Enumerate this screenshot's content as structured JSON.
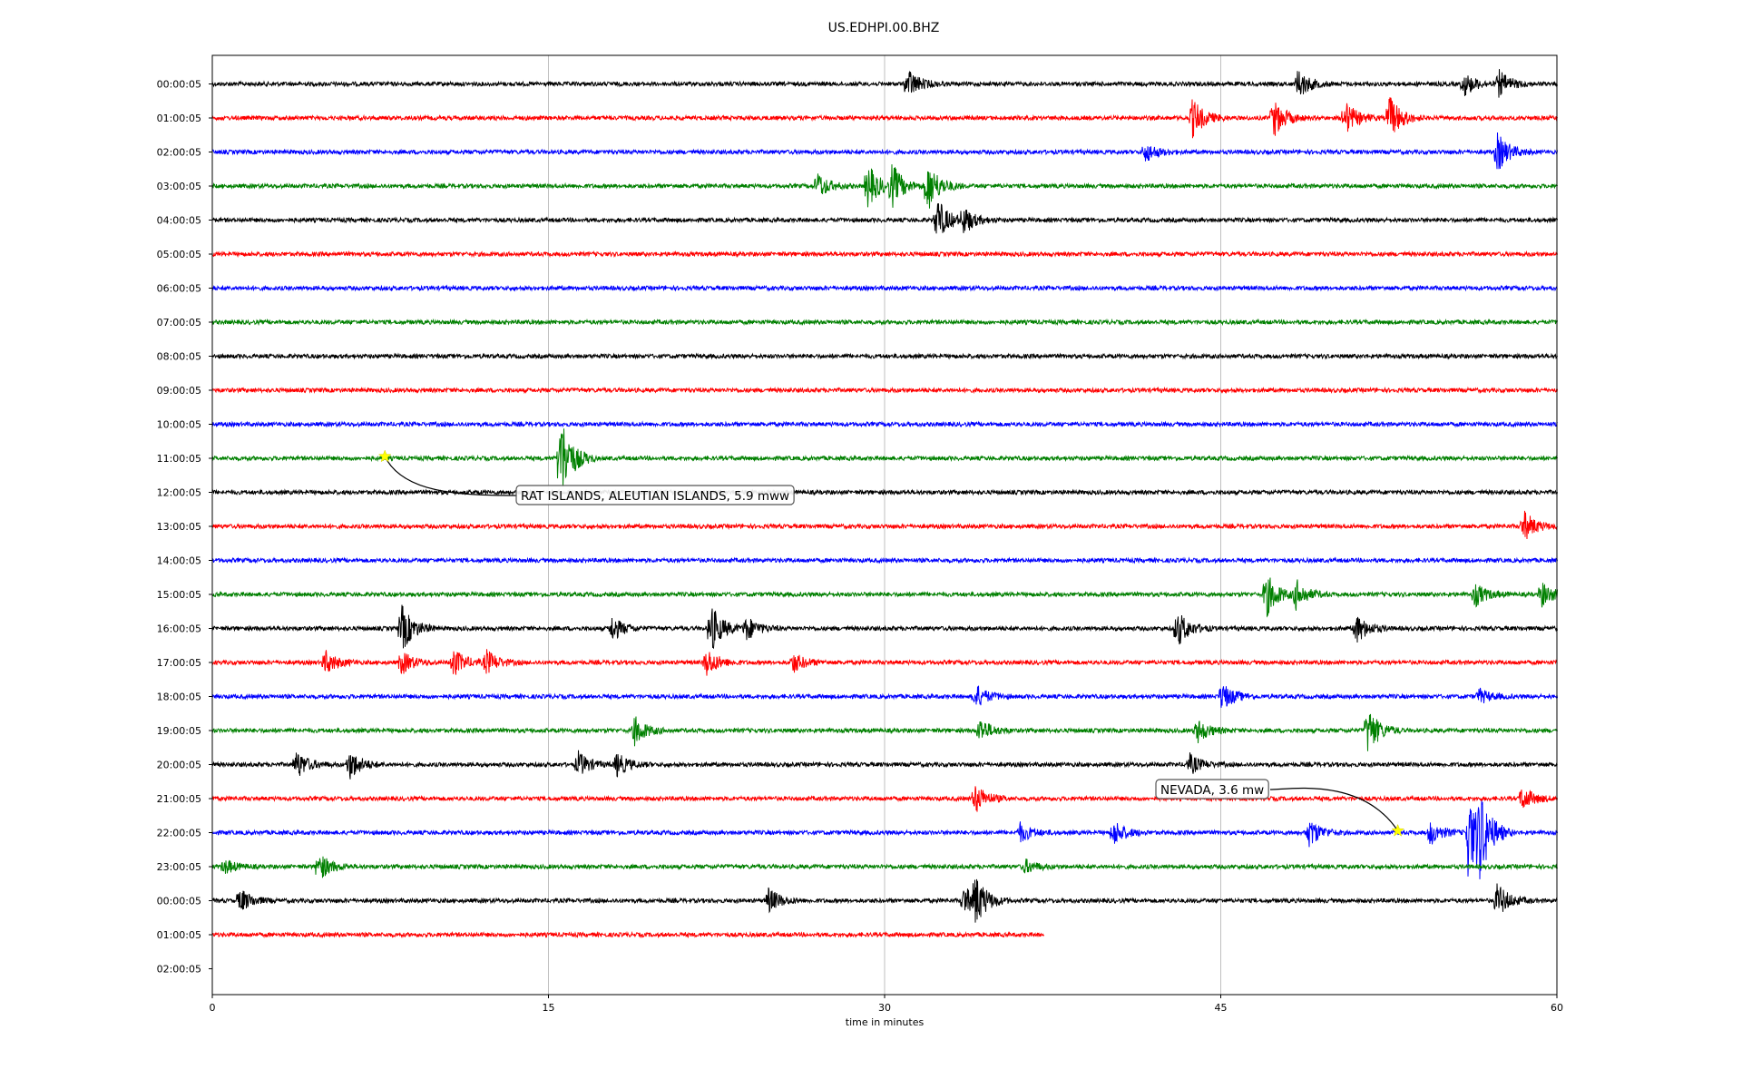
{
  "chart_data": {
    "type": "line",
    "title": "US.EDHPI.00.BHZ",
    "xlabel": "time in minutes",
    "ylabel": "",
    "xlim": [
      0,
      60
    ],
    "x_ticks": [
      "0",
      "15",
      "30",
      "45",
      "60"
    ],
    "grid": "vertical lines at 15, 30, 45",
    "colors": [
      "#000000",
      "#ff0000",
      "#0000ff",
      "#008000"
    ],
    "rows": [
      {
        "label": "00:00:05",
        "color": "#000000",
        "end": 60,
        "events": [
          [
            31,
            0.6
          ],
          [
            48.4,
            0.6
          ],
          [
            55.8,
            0.5
          ],
          [
            57.4,
            0.5
          ]
        ]
      },
      {
        "label": "01:00:05",
        "color": "#ff0000",
        "end": 60,
        "events": [
          [
            43.7,
            0.8
          ],
          [
            47.3,
            0.8
          ],
          [
            50.5,
            0.7
          ],
          [
            52.5,
            0.9
          ]
        ]
      },
      {
        "label": "02:00:05",
        "color": "#0000ff",
        "end": 60,
        "events": [
          [
            41.6,
            0.4
          ],
          [
            57.3,
            0.8
          ]
        ]
      },
      {
        "label": "03:00:05",
        "color": "#008000",
        "end": 60,
        "events": [
          [
            27,
            0.5
          ],
          [
            29.2,
            0.9
          ],
          [
            30.3,
            0.8
          ],
          [
            31.9,
            1.0
          ]
        ]
      },
      {
        "label": "04:00:05",
        "color": "#000000",
        "end": 60,
        "events": [
          [
            32.3,
            0.9
          ],
          [
            33.5,
            0.5
          ]
        ]
      },
      {
        "label": "05:00:05",
        "color": "#ff0000",
        "end": 60,
        "events": []
      },
      {
        "label": "06:00:05",
        "color": "#0000ff",
        "end": 60,
        "events": []
      },
      {
        "label": "07:00:05",
        "color": "#008000",
        "end": 60,
        "events": []
      },
      {
        "label": "08:00:05",
        "color": "#000000",
        "end": 60,
        "events": []
      },
      {
        "label": "09:00:05",
        "color": "#ff0000",
        "end": 60,
        "events": []
      },
      {
        "label": "10:00:05",
        "color": "#0000ff",
        "end": 60,
        "events": []
      },
      {
        "label": "11:00:05",
        "color": "#008000",
        "end": 60,
        "events": [
          [
            15.5,
            1.8
          ]
        ]
      },
      {
        "label": "12:00:05",
        "color": "#000000",
        "end": 60,
        "events": []
      },
      {
        "label": "13:00:05",
        "color": "#ff0000",
        "end": 60,
        "events": [
          [
            58.5,
            0.6
          ]
        ]
      },
      {
        "label": "14:00:05",
        "color": "#0000ff",
        "end": 60,
        "events": []
      },
      {
        "label": "15:00:05",
        "color": "#008000",
        "end": 60,
        "events": [
          [
            47,
            0.9
          ],
          [
            48.3,
            0.6
          ],
          [
            56.3,
            0.5
          ],
          [
            59.3,
            0.5
          ]
        ]
      },
      {
        "label": "16:00:05",
        "color": "#000000",
        "end": 60,
        "events": [
          [
            8.4,
            1.0
          ],
          [
            17.8,
            0.5
          ],
          [
            22.2,
            1.0
          ],
          [
            23.8,
            0.5
          ],
          [
            43,
            0.8
          ],
          [
            51,
            0.6
          ]
        ]
      },
      {
        "label": "17:00:05",
        "color": "#ff0000",
        "end": 60,
        "events": [
          [
            5,
            0.5
          ],
          [
            8.4,
            0.5
          ],
          [
            10.7,
            0.6
          ],
          [
            12.2,
            0.5
          ],
          [
            22,
            0.6
          ],
          [
            25.9,
            0.4
          ]
        ]
      },
      {
        "label": "18:00:05",
        "color": "#0000ff",
        "end": 60,
        "events": [
          [
            34,
            0.5
          ],
          [
            45,
            0.6
          ],
          [
            56.5,
            0.3
          ]
        ]
      },
      {
        "label": "19:00:05",
        "color": "#008000",
        "end": 60,
        "events": [
          [
            18.8,
            0.6
          ],
          [
            34.2,
            0.5
          ],
          [
            43.9,
            0.5
          ],
          [
            51.5,
            1.0
          ]
        ]
      },
      {
        "label": "20:00:05",
        "color": "#000000",
        "end": 60,
        "events": [
          [
            3.7,
            0.6
          ],
          [
            6.1,
            0.6
          ],
          [
            16.3,
            0.5
          ],
          [
            18,
            0.5
          ],
          [
            43.6,
            0.4
          ]
        ]
      },
      {
        "label": "21:00:05",
        "color": "#ff0000",
        "end": 60,
        "events": [
          [
            34,
            0.6
          ],
          [
            58.4,
            0.5
          ]
        ]
      },
      {
        "label": "22:00:05",
        "color": "#0000ff",
        "end": 60,
        "events": [
          [
            36,
            0.4
          ],
          [
            40.2,
            0.5
          ],
          [
            48.9,
            0.6
          ],
          [
            54.3,
            0.5
          ],
          [
            56,
            1.8
          ],
          [
            56.5,
            1.4
          ]
        ]
      },
      {
        "label": "23:00:05",
        "color": "#008000",
        "end": 60,
        "events": [
          [
            0.5,
            0.3
          ],
          [
            4.7,
            0.6
          ],
          [
            36.2,
            0.3
          ]
        ]
      },
      {
        "label": "00:00:05",
        "color": "#000000",
        "end": 60,
        "events": [
          [
            1.2,
            0.5
          ],
          [
            24.8,
            0.5
          ],
          [
            33.5,
            0.6
          ],
          [
            34,
            0.9
          ],
          [
            57.3,
            0.7
          ]
        ]
      },
      {
        "label": "01:00:05",
        "color": "#ff0000",
        "end": 37.1,
        "events": []
      },
      {
        "label": "02:00:05",
        "color": "#000000",
        "end": 0,
        "events": []
      }
    ],
    "annotations": [
      {
        "text": "RAT ISLANDS, ALEUTIAN ISLANDS, 5.9 mww",
        "row": 11,
        "x": 7.7
      },
      {
        "text": "NEVADA, 3.6 mw",
        "row": 22,
        "x": 52.9
      }
    ]
  }
}
